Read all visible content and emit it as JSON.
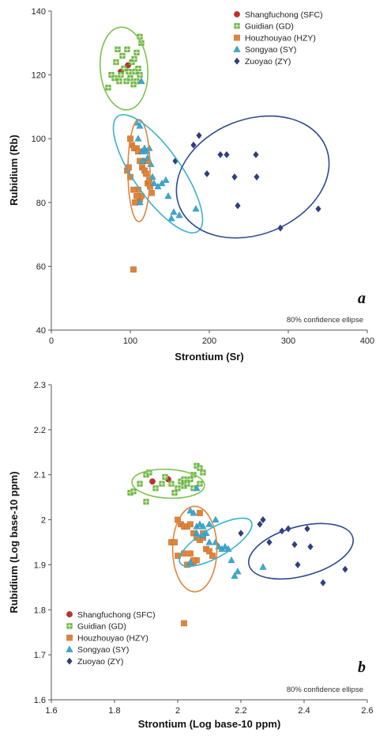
{
  "chart_data": [
    {
      "type": "scatter",
      "panel_label": "a",
      "note": "80% confidence ellipse",
      "xlabel": "Strontium (Sr)",
      "ylabel": "Rubidium (Rb)",
      "xlim": [
        0,
        400
      ],
      "ylim": [
        40,
        140
      ],
      "xticks": [
        "0",
        "100",
        "200",
        "300",
        "400"
      ],
      "yticks": [
        "40",
        "60",
        "80",
        "100",
        "120",
        "140"
      ],
      "legend_position": "top-right",
      "series": [
        {
          "name": "Shangfuchong (SFC)",
          "marker": "circle",
          "color": "#c0302a",
          "points": [
            [
              88,
              121
            ],
            [
              97,
              123
            ]
          ]
        },
        {
          "name": "Guidian (GD)",
          "marker": "square-plus",
          "color": "#6fb544",
          "points": [
            [
              72,
              116
            ],
            [
              76,
              120
            ],
            [
              80,
              119
            ],
            [
              82,
              124
            ],
            [
              84,
              128
            ],
            [
              86,
              118
            ],
            [
              88,
              120
            ],
            [
              90,
              126
            ],
            [
              92,
              122
            ],
            [
              95,
              118
            ],
            [
              98,
              121
            ],
            [
              100,
              119
            ],
            [
              102,
              124
            ],
            [
              104,
              117
            ],
            [
              106,
              121
            ],
            [
              108,
              127
            ],
            [
              110,
              122
            ],
            [
              112,
              132
            ],
            [
              114,
              130
            ],
            [
              108,
              118
            ],
            [
              112,
              120
            ],
            [
              105,
              125
            ],
            [
              96,
              128
            ]
          ]
        },
        {
          "name": "Houzhouyao (HZY)",
          "marker": "square",
          "color": "#e0843a",
          "points": [
            [
              100,
              100
            ],
            [
              102,
              98
            ],
            [
              105,
              97
            ],
            [
              108,
              97
            ],
            [
              110,
              96
            ],
            [
              112,
              93
            ],
            [
              115,
              91
            ],
            [
              118,
              90
            ],
            [
              120,
              89
            ],
            [
              122,
              86
            ],
            [
              125,
              85
            ],
            [
              127,
              83
            ],
            [
              110,
              84
            ],
            [
              112,
              81
            ],
            [
              114,
              82
            ],
            [
              96,
              90
            ],
            [
              98,
              91
            ],
            [
              100,
              88
            ],
            [
              104,
              84
            ],
            [
              106,
              80
            ],
            [
              108,
              82
            ],
            [
              120,
              93
            ],
            [
              124,
              87
            ],
            [
              104,
              59
            ]
          ]
        },
        {
          "name": "Songyao (SY)",
          "marker": "triangle",
          "color": "#3aa9cf",
          "points": [
            [
              108,
              105
            ],
            [
              112,
              104
            ],
            [
              115,
              96
            ],
            [
              118,
              97
            ],
            [
              120,
              96
            ],
            [
              122,
              94
            ],
            [
              124,
              97
            ],
            [
              126,
              92
            ],
            [
              128,
              88
            ],
            [
              130,
              86
            ],
            [
              135,
              85
            ],
            [
              140,
              86
            ],
            [
              145,
              87
            ],
            [
              148,
              82
            ],
            [
              152,
              75
            ],
            [
              155,
              77
            ],
            [
              162,
              76
            ],
            [
              183,
              78
            ],
            [
              112,
              80
            ],
            [
              114,
              118
            ],
            [
              110,
              100
            ],
            [
              116,
              93
            ]
          ]
        },
        {
          "name": "Zuoyao (ZY)",
          "marker": "diamond",
          "color": "#2f3e7e",
          "points": [
            [
              157,
              93
            ],
            [
              180,
              98
            ],
            [
              187,
              101
            ],
            [
              197,
              89
            ],
            [
              214,
              95
            ],
            [
              222,
              95
            ],
            [
              232,
              88
            ],
            [
              236,
              79
            ],
            [
              259,
              95
            ],
            [
              260,
              88
            ],
            [
              290,
              72
            ],
            [
              338,
              78
            ]
          ]
        }
      ],
      "ellipses": [
        {
          "series": "Guidian (GD)",
          "color": "#7cc24f",
          "cx": 92,
          "cy": 122,
          "rx": 30,
          "ry": 13,
          "angle": -5
        },
        {
          "series": "Houzhouyao (HZY)",
          "color": "#e0843a",
          "cx": 111,
          "cy": 90,
          "rx": 14,
          "ry": 16,
          "angle": 0
        },
        {
          "series": "Songyao (SY)",
          "color": "#3ab0d2",
          "cx": 135,
          "cy": 89,
          "rx": 30,
          "ry": 22,
          "angle": -35
        },
        {
          "series": "Zuoyao (ZY)",
          "color": "#2f4a8e",
          "cx": 255,
          "cy": 88,
          "rx": 100,
          "ry": 18,
          "angle": -22
        }
      ]
    },
    {
      "type": "scatter",
      "panel_label": "b",
      "note": "80% confidence ellipse",
      "xlabel": "Strontium (Log base-10 ppm)",
      "ylabel": "Rubidium (Log base-10 ppm)",
      "xlim": [
        1.6,
        2.6
      ],
      "ylim": [
        1.6,
        2.3
      ],
      "xticks": [
        "1.6",
        "1.8",
        "2",
        "2.2",
        "2.4",
        "2.6"
      ],
      "yticks": [
        "1.6",
        "1.7",
        "1.8",
        "1.9",
        "2",
        "2.1",
        "2.2",
        "2.3"
      ],
      "legend_position": "bottom-left",
      "series": [
        {
          "name": "Shangfuchong (SFC)",
          "marker": "circle",
          "color": "#c0302a",
          "points": [
            [
              1.92,
              2.085
            ],
            [
              1.97,
              2.09
            ]
          ]
        },
        {
          "name": "Guidian (GD)",
          "marker": "square-plus",
          "color": "#6fb544",
          "points": [
            [
              1.85,
              2.06
            ],
            [
              1.86,
              2.063
            ],
            [
              1.88,
              2.08
            ],
            [
              1.9,
              2.1
            ],
            [
              1.91,
              2.105
            ],
            [
              1.93,
              2.07
            ],
            [
              1.95,
              2.08
            ],
            [
              1.96,
              2.095
            ],
            [
              1.98,
              2.08
            ],
            [
              2.0,
              2.07
            ],
            [
              2.01,
              2.085
            ],
            [
              2.02,
              2.075
            ],
            [
              2.03,
              2.08
            ],
            [
              2.04,
              2.09
            ],
            [
              2.05,
              2.1
            ],
            [
              2.06,
              2.12
            ],
            [
              2.07,
              2.115
            ],
            [
              2.08,
              2.105
            ],
            [
              2.05,
              2.07
            ],
            [
              2.07,
              2.08
            ],
            [
              1.9,
              2.04
            ],
            [
              1.99,
              2.06
            ],
            [
              2.02,
              2.09
            ]
          ]
        },
        {
          "name": "Houzhouyao (HZY)",
          "marker": "square",
          "color": "#e0843a",
          "points": [
            [
              2.0,
              2.0
            ],
            [
              2.01,
              1.99
            ],
            [
              2.02,
              1.985
            ],
            [
              2.03,
              1.985
            ],
            [
              2.04,
              1.99
            ],
            [
              2.05,
              1.97
            ],
            [
              2.06,
              1.96
            ],
            [
              2.07,
              1.955
            ],
            [
              2.08,
              1.96
            ],
            [
              2.09,
              1.935
            ],
            [
              2.1,
              1.93
            ],
            [
              2.11,
              1.92
            ],
            [
              2.04,
              1.925
            ],
            [
              2.05,
              1.905
            ],
            [
              2.06,
              1.91
            ],
            [
              1.98,
              1.95
            ],
            [
              1.99,
              1.95
            ],
            [
              2.0,
              1.92
            ],
            [
              2.02,
              1.925
            ],
            [
              2.03,
              1.9
            ],
            [
              2.05,
              1.91
            ],
            [
              2.08,
              1.97
            ],
            [
              2.07,
              2.015
            ],
            [
              2.02,
              1.77
            ]
          ]
        },
        {
          "name": "Songyao (SY)",
          "marker": "triangle",
          "color": "#3aa9cf",
          "points": [
            [
              2.04,
              2.02
            ],
            [
              2.05,
              2.015
            ],
            [
              2.06,
              1.985
            ],
            [
              2.07,
              1.99
            ],
            [
              2.08,
              1.985
            ],
            [
              2.09,
              1.97
            ],
            [
              2.1,
              1.99
            ],
            [
              2.12,
              1.95
            ],
            [
              2.13,
              1.94
            ],
            [
              2.14,
              1.935
            ],
            [
              2.15,
              1.94
            ],
            [
              2.16,
              1.935
            ],
            [
              2.17,
              1.91
            ],
            [
              2.18,
              1.875
            ],
            [
              2.19,
              1.885
            ],
            [
              2.27,
              1.895
            ],
            [
              2.04,
              1.905
            ],
            [
              2.06,
              2.07
            ],
            [
              2.08,
              1.965
            ],
            [
              2.1,
              1.95
            ],
            [
              2.12,
              2.0
            ],
            [
              2.06,
              1.97
            ]
          ]
        },
        {
          "name": "Zuoyao (ZY)",
          "marker": "diamond",
          "color": "#2f3e7e",
          "points": [
            [
              2.2,
              1.97
            ],
            [
              2.26,
              1.99
            ],
            [
              2.27,
              2.0
            ],
            [
              2.29,
              1.95
            ],
            [
              2.33,
              1.975
            ],
            [
              2.35,
              1.98
            ],
            [
              2.37,
              1.945
            ],
            [
              2.38,
              1.9
            ],
            [
              2.41,
              1.98
            ],
            [
              2.42,
              1.94
            ],
            [
              2.46,
              1.86
            ],
            [
              2.53,
              1.89
            ]
          ]
        }
      ],
      "ellipses": [
        {
          "series": "Guidian (GD)",
          "color": "#7cc24f",
          "cx": 1.97,
          "cy": 2.08,
          "rx": 0.115,
          "ry": 0.032,
          "angle": 3
        },
        {
          "series": "Houzhouyao (HZY)",
          "color": "#e0843a",
          "cx": 2.054,
          "cy": 1.935,
          "rx": 0.07,
          "ry": 0.095,
          "angle": 0
        },
        {
          "series": "Songyao (SY)",
          "color": "#3ab0d2",
          "cx": 2.12,
          "cy": 1.95,
          "rx": 0.13,
          "ry": 0.032,
          "angle": -30
        },
        {
          "series": "Zuoyao (ZY)",
          "color": "#2f4a8e",
          "cx": 2.39,
          "cy": 1.93,
          "rx": 0.17,
          "ry": 0.055,
          "angle": -15
        }
      ]
    }
  ]
}
